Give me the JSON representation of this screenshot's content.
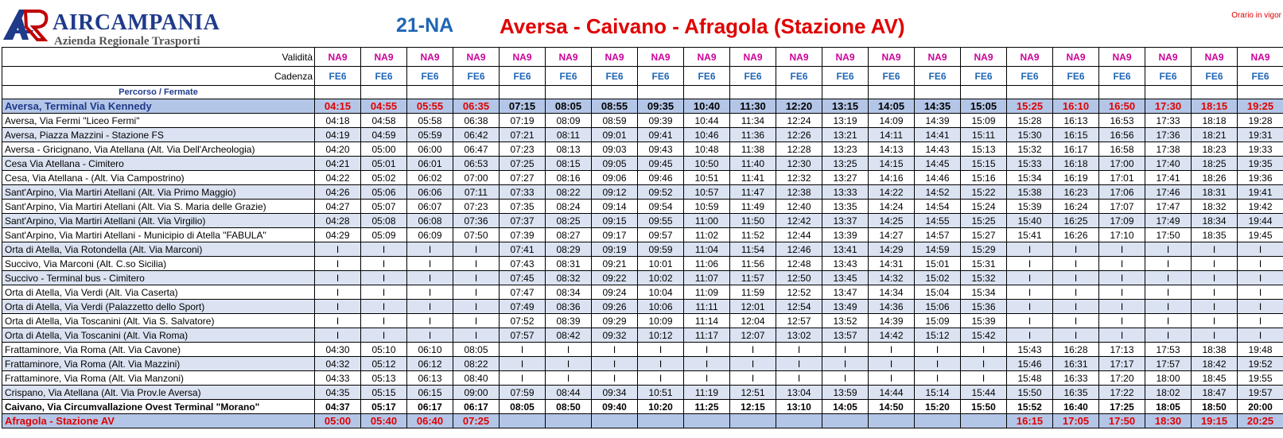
{
  "header": {
    "brand": "AIRCAMPANIA",
    "brand_sub": "Azienda Regionale Trasporti",
    "line_code": "21-NA",
    "route_title": "Aversa - Caivano - Afragola (Stazione AV)",
    "validity_note": "Orario in vigor",
    "colors": {
      "brand_blue": "#1f3a8a",
      "title_red": "#e00000",
      "validity_magenta": "#cc0099",
      "cadence_blue": "#1f66b5",
      "row_band": "#dbe3f2",
      "terminal_band": "#b4c6e7"
    }
  },
  "table": {
    "validita_label": "Validità",
    "cadenza_label": "Cadenza",
    "percorso_label": "Percorso / Fermate",
    "validita": [
      "NA9",
      "NA9",
      "NA9",
      "NA9",
      "NA9",
      "NA9",
      "NA9",
      "NA9",
      "NA9",
      "NA9",
      "NA9",
      "NA9",
      "NA9",
      "NA9",
      "NA9",
      "NA9",
      "NA9",
      "NA9",
      "NA9",
      "NA9",
      "NA9"
    ],
    "cadenza": [
      "FE6",
      "FE6",
      "FE6",
      "FE6",
      "FE6",
      "FE6",
      "FE6",
      "FE6",
      "FE6",
      "FE6",
      "FE6",
      "FE6",
      "FE6",
      "FE6",
      "FE6",
      "FE6",
      "FE6",
      "FE6",
      "FE6",
      "FE6",
      "FE6"
    ],
    "red_columns_first_row": [
      0,
      1,
      2,
      3,
      15,
      16,
      17,
      18,
      19,
      20
    ],
    "red_columns_last_row": [
      0,
      1,
      2,
      3,
      15,
      16,
      17,
      18,
      19,
      20
    ],
    "stops": [
      {
        "name": "Aversa, Terminal Via Kennedy",
        "style": "first",
        "times": [
          "04:15",
          "04:55",
          "05:55",
          "06:35",
          "07:15",
          "08:05",
          "08:55",
          "09:35",
          "10:40",
          "11:30",
          "12:20",
          "13:15",
          "14:05",
          "14:35",
          "15:05",
          "15:25",
          "16:10",
          "16:50",
          "17:30",
          "18:15",
          "19:25"
        ]
      },
      {
        "name": "Aversa,  Via Fermi \"Liceo Fermi\"",
        "style": "",
        "times": [
          "04:18",
          "04:58",
          "05:58",
          "06:38",
          "07:19",
          "08:09",
          "08:59",
          "09:39",
          "10:44",
          "11:34",
          "12:24",
          "13:19",
          "14:09",
          "14:39",
          "15:09",
          "15:28",
          "16:13",
          "16:53",
          "17:33",
          "18:18",
          "19:28"
        ]
      },
      {
        "name": "Aversa, Piazza Mazzini - Stazione FS",
        "style": "alt",
        "times": [
          "04:19",
          "04:59",
          "05:59",
          "06:42",
          "07:21",
          "08:11",
          "09:01",
          "09:41",
          "10:46",
          "11:36",
          "12:26",
          "13:21",
          "14:11",
          "14:41",
          "15:11",
          "15:30",
          "16:15",
          "16:56",
          "17:36",
          "18:21",
          "19:31"
        ]
      },
      {
        "name": "Aversa - Gricignano, Via Atellana (Alt. Via Dell'Archeologia)",
        "style": "",
        "times": [
          "04:20",
          "05:00",
          "06:00",
          "06:47",
          "07:23",
          "08:13",
          "09:03",
          "09:43",
          "10:48",
          "11:38",
          "12:28",
          "13:23",
          "14:13",
          "14:43",
          "15:13",
          "15:32",
          "16:17",
          "16:58",
          "17:38",
          "18:23",
          "19:33"
        ]
      },
      {
        "name": "Cesa Via Atellana - Cimitero",
        "style": "alt",
        "times": [
          "04:21",
          "05:01",
          "06:01",
          "06:53",
          "07:25",
          "08:15",
          "09:05",
          "09:45",
          "10:50",
          "11:40",
          "12:30",
          "13:25",
          "14:15",
          "14:45",
          "15:15",
          "15:33",
          "16:18",
          "17:00",
          "17:40",
          "18:25",
          "19:35"
        ]
      },
      {
        "name": "Cesa, Via Atellana - (Alt. Via Campostrino)",
        "style": "",
        "times": [
          "04:22",
          "05:02",
          "06:02",
          "07:00",
          "07:27",
          "08:16",
          "09:06",
          "09:46",
          "10:51",
          "11:41",
          "12:32",
          "13:27",
          "14:16",
          "14:46",
          "15:16",
          "15:34",
          "16:19",
          "17:01",
          "17:41",
          "18:26",
          "19:36"
        ]
      },
      {
        "name": "Sant'Arpino, Via Martiri Atellani (Alt. Via Primo Maggio)",
        "style": "alt",
        "times": [
          "04:26",
          "05:06",
          "06:06",
          "07:11",
          "07:33",
          "08:22",
          "09:12",
          "09:52",
          "10:57",
          "11:47",
          "12:38",
          "13:33",
          "14:22",
          "14:52",
          "15:22",
          "15:38",
          "16:23",
          "17:06",
          "17:46",
          "18:31",
          "19:41"
        ]
      },
      {
        "name": "Sant'Arpino, Via Martiri Atellani (Alt. Via S. Maria delle Grazie)",
        "style": "",
        "times": [
          "04:27",
          "05:07",
          "06:07",
          "07:23",
          "07:35",
          "08:24",
          "09:14",
          "09:54",
          "10:59",
          "11:49",
          "12:40",
          "13:35",
          "14:24",
          "14:54",
          "15:24",
          "15:39",
          "16:24",
          "17:07",
          "17:47",
          "18:32",
          "19:42"
        ]
      },
      {
        "name": "Sant'Arpino, Via Martiri Atellani (Alt. Via Virgilio)",
        "style": "alt",
        "times": [
          "04:28",
          "05:08",
          "06:08",
          "07:36",
          "07:37",
          "08:25",
          "09:15",
          "09:55",
          "11:00",
          "11:50",
          "12:42",
          "13:37",
          "14:25",
          "14:55",
          "15:25",
          "15:40",
          "16:25",
          "17:09",
          "17:49",
          "18:34",
          "19:44"
        ]
      },
      {
        "name": "Sant'Arpino, Via Martiri Atellani - Municipio di Atella \"FABULA\"",
        "style": "",
        "times": [
          "04:29",
          "05:09",
          "06:09",
          "07:50",
          "07:39",
          "08:27",
          "09:17",
          "09:57",
          "11:02",
          "11:52",
          "12:44",
          "13:39",
          "14:27",
          "14:57",
          "15:27",
          "15:41",
          "16:26",
          "17:10",
          "17:50",
          "18:35",
          "19:45"
        ]
      },
      {
        "name": "Orta di Atella, Via Rotondella (Alt. Via Marconi)",
        "style": "alt",
        "times": [
          "I",
          "I",
          "I",
          "I",
          "07:41",
          "08:29",
          "09:19",
          "09:59",
          "11:04",
          "11:54",
          "12:46",
          "13:41",
          "14:29",
          "14:59",
          "15:29",
          "I",
          "I",
          "I",
          "I",
          "I",
          "I"
        ]
      },
      {
        "name": "Succivo, Via Marconi (Alt. C.so Sicilia)",
        "style": "",
        "times": [
          "I",
          "I",
          "I",
          "I",
          "07:43",
          "08:31",
          "09:21",
          "10:01",
          "11:06",
          "11:56",
          "12:48",
          "13:43",
          "14:31",
          "15:01",
          "15:31",
          "I",
          "I",
          "I",
          "I",
          "I",
          "I"
        ]
      },
      {
        "name": "Succivo - Terminal bus - Cimitero",
        "style": "alt",
        "times": [
          "I",
          "I",
          "I",
          "I",
          "07:45",
          "08:32",
          "09:22",
          "10:02",
          "11:07",
          "11:57",
          "12:50",
          "13:45",
          "14:32",
          "15:02",
          "15:32",
          "I",
          "I",
          "I",
          "I",
          "I",
          "I"
        ]
      },
      {
        "name": "Orta di Atella, Via Verdi (Alt. Via Caserta)",
        "style": "",
        "times": [
          "I",
          "I",
          "I",
          "I",
          "07:47",
          "08:34",
          "09:24",
          "10:04",
          "11:09",
          "11:59",
          "12:52",
          "13:47",
          "14:34",
          "15:04",
          "15:34",
          "I",
          "I",
          "I",
          "I",
          "I",
          "I"
        ]
      },
      {
        "name": "Orta di Atella, Via Verdi (Palazzetto dello Sport)",
        "style": "alt",
        "times": [
          "I",
          "I",
          "I",
          "I",
          "07:49",
          "08:36",
          "09:26",
          "10:06",
          "11:11",
          "12:01",
          "12:54",
          "13:49",
          "14:36",
          "15:06",
          "15:36",
          "I",
          "I",
          "I",
          "I",
          "I",
          "I"
        ]
      },
      {
        "name": "Orta di Atella, Via Toscanini (Alt. Via S. Salvatore)",
        "style": "",
        "times": [
          "I",
          "I",
          "I",
          "I",
          "07:52",
          "08:39",
          "09:29",
          "10:09",
          "11:14",
          "12:04",
          "12:57",
          "13:52",
          "14:39",
          "15:09",
          "15:39",
          "I",
          "I",
          "I",
          "I",
          "I",
          "I"
        ]
      },
      {
        "name": "Orta di Atella, Via Toscanini (Alt. Via Roma)",
        "style": "alt",
        "times": [
          "I",
          "I",
          "I",
          "I",
          "07:57",
          "08:42",
          "09:32",
          "10:12",
          "11:17",
          "12:07",
          "13:02",
          "13:57",
          "14:42",
          "15:12",
          "15:42",
          "I",
          "I",
          "I",
          "I",
          "I",
          "I"
        ]
      },
      {
        "name": "Frattaminore, Via Roma (Alt. Via Cavone)",
        "style": "",
        "times": [
          "04:30",
          "05:10",
          "06:10",
          "08:05",
          "I",
          "I",
          "I",
          "I",
          "I",
          "I",
          "I",
          "I",
          "I",
          "I",
          "I",
          "15:43",
          "16:28",
          "17:13",
          "17:53",
          "18:38",
          "19:48"
        ]
      },
      {
        "name": "Frattaminore, Via Roma (Alt. Via Mazzini)",
        "style": "alt",
        "times": [
          "04:32",
          "05:12",
          "06:12",
          "08:22",
          "I",
          "I",
          "I",
          "I",
          "I",
          "I",
          "I",
          "I",
          "I",
          "I",
          "I",
          "15:46",
          "16:31",
          "17:17",
          "17:57",
          "18:42",
          "19:52"
        ]
      },
      {
        "name": "Frattaminore, Via Roma (Alt. Via Manzoni)",
        "style": "",
        "times": [
          "04:33",
          "05:13",
          "06:13",
          "08:40",
          "I",
          "I",
          "I",
          "I",
          "I",
          "I",
          "I",
          "I",
          "I",
          "I",
          "I",
          "15:48",
          "16:33",
          "17:20",
          "18:00",
          "18:45",
          "19:55"
        ]
      },
      {
        "name": "Crispano, Via Atellana (Alt. Via Prov.le Aversa)",
        "style": "alt",
        "times": [
          "04:35",
          "05:15",
          "06:15",
          "09:00",
          "07:59",
          "08:44",
          "09:34",
          "10:51",
          "11:19",
          "12:51",
          "13:04",
          "13:59",
          "14:44",
          "15:14",
          "15:44",
          "15:50",
          "16:35",
          "17:22",
          "18:02",
          "18:47",
          "19:57"
        ]
      },
      {
        "name": "Caivano, Via Circumvallazione Ovest Terminal \"Morano\"",
        "style": "bold",
        "times": [
          "04:37",
          "05:17",
          "06:17",
          "06:17",
          "08:05",
          "08:50",
          "09:40",
          "10:20",
          "11:25",
          "12:15",
          "13:10",
          "14:05",
          "14:50",
          "15:20",
          "15:50",
          "15:52",
          "16:40",
          "17:25",
          "18:05",
          "18:50",
          "20:00"
        ]
      },
      {
        "name": "Afragola - Stazione AV",
        "style": "last",
        "times": [
          "05:00",
          "05:40",
          "06:40",
          "07:25",
          "",
          "",
          "",
          "",
          "",
          "",
          "",
          "",
          "",
          "",
          "",
          "16:15",
          "17:05",
          "17:50",
          "18:30",
          "19:15",
          "20:25"
        ]
      }
    ]
  }
}
